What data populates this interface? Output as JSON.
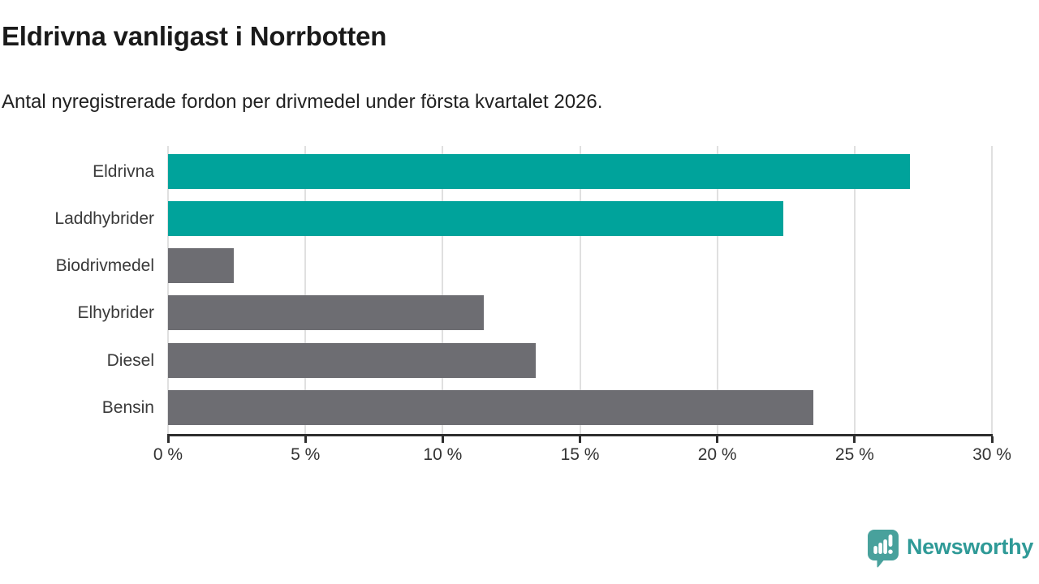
{
  "title": "Eldrivna vanligast i Norrbotten",
  "subtitle": "Antal nyregistrerade fordon per drivmedel under första kvartalet 2026.",
  "chart_data": {
    "type": "bar",
    "orientation": "horizontal",
    "title": "Eldrivna vanligast i Norrbotten",
    "subtitle": "Antal nyregistrerade fordon per drivmedel under första kvartalet 2026.",
    "categories": [
      "Eldrivna",
      "Laddhybrider",
      "Biodrivmedel",
      "Elhybrider",
      "Diesel",
      "Bensin"
    ],
    "values": [
      27.0,
      22.4,
      2.4,
      11.5,
      13.4,
      23.5
    ],
    "unit": "%",
    "xlabel": "",
    "ylabel": "",
    "xlim": [
      0,
      30
    ],
    "x_ticks": [
      0,
      5,
      10,
      15,
      20,
      25,
      30
    ],
    "x_tick_labels": [
      "0 %",
      "5 %",
      "10 %",
      "15 %",
      "20 %",
      "25 %",
      "30 %"
    ],
    "bar_colors": [
      "#00a39b",
      "#00a39b",
      "#6d6d72",
      "#6d6d72",
      "#6d6d72",
      "#6d6d72"
    ],
    "highlight_color": "#00a39b",
    "default_color": "#6d6d72",
    "grid": true,
    "gridline_color": "#e0e0e0",
    "axis_color": "#2e2e2e",
    "legend": null
  },
  "branding": {
    "name": "Newsworthy",
    "wordmark_color": "#2f9a97",
    "icon_color": "#48a19c",
    "icon": "newsworthy-chart-bubble-icon"
  }
}
